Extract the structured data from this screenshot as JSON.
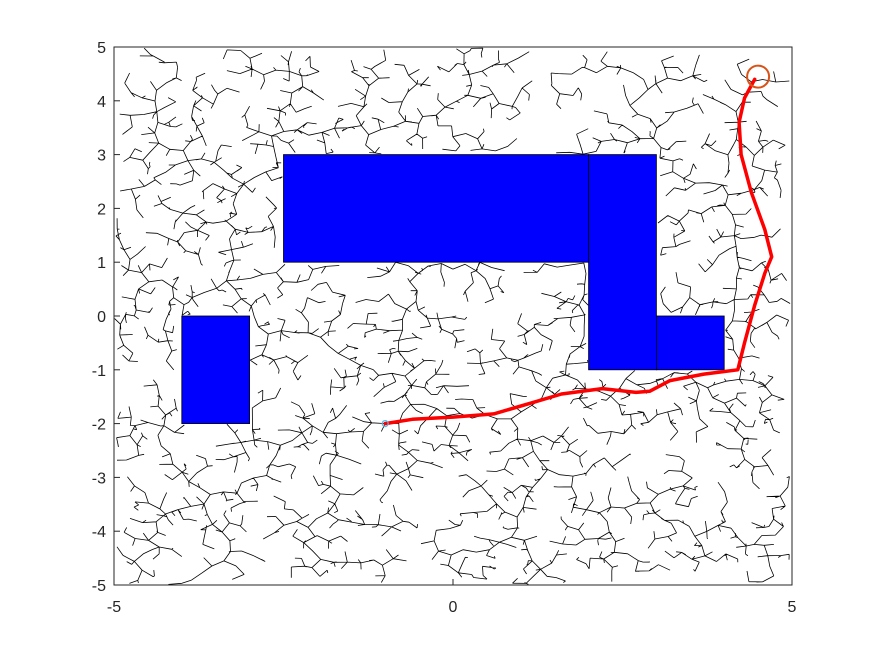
{
  "chart_data": {
    "type": "scatter",
    "title": "",
    "xlabel": "",
    "ylabel": "",
    "xlim": [
      -5,
      5
    ],
    "ylim": [
      -5,
      5
    ],
    "grid": false,
    "x_ticks": [
      "-5",
      "0",
      "5"
    ],
    "y_ticks": [
      "5",
      "4",
      "3",
      "2",
      "1",
      "0",
      "-1",
      "-2",
      "-3",
      "-4",
      "-5"
    ],
    "start": {
      "x": -1,
      "y": -2
    },
    "goal": {
      "x": 4.5,
      "y": 4.45,
      "marker": "circle",
      "color": "#D95319"
    },
    "obstacles": [
      {
        "x0": -2.5,
        "y0": 1,
        "x1": 2,
        "y1": 3
      },
      {
        "x0": 2,
        "y0": -1,
        "x1": 3,
        "y1": 3
      },
      {
        "x0": 3,
        "y0": -1,
        "x1": 4,
        "y1": 0
      },
      {
        "x0": -4,
        "y0": -2,
        "x1": -3,
        "y1": 0
      }
    ],
    "path": [
      [
        -1,
        -2
      ],
      [
        -0.6,
        -1.92
      ],
      [
        0,
        -1.88
      ],
      [
        0.6,
        -1.82
      ],
      [
        1.2,
        -1.6
      ],
      [
        1.6,
        -1.45
      ],
      [
        2.2,
        -1.35
      ],
      [
        2.7,
        -1.42
      ],
      [
        2.9,
        -1.4
      ],
      [
        3.2,
        -1.2
      ],
      [
        3.7,
        -1.08
      ],
      [
        4.2,
        -1.0
      ],
      [
        4.3,
        -0.5
      ],
      [
        4.45,
        0.2
      ],
      [
        4.6,
        0.8
      ],
      [
        4.7,
        1.1
      ],
      [
        4.6,
        1.6
      ],
      [
        4.4,
        2.3
      ],
      [
        4.25,
        3.0
      ],
      [
        4.22,
        3.6
      ],
      [
        4.3,
        4.05
      ],
      [
        4.45,
        4.4
      ]
    ],
    "tree": {
      "color": "#000000",
      "line_width": 0.8
    },
    "colors": {
      "obstacle": "#0000FF",
      "path": "#FF0000",
      "axes": "#262626"
    }
  }
}
